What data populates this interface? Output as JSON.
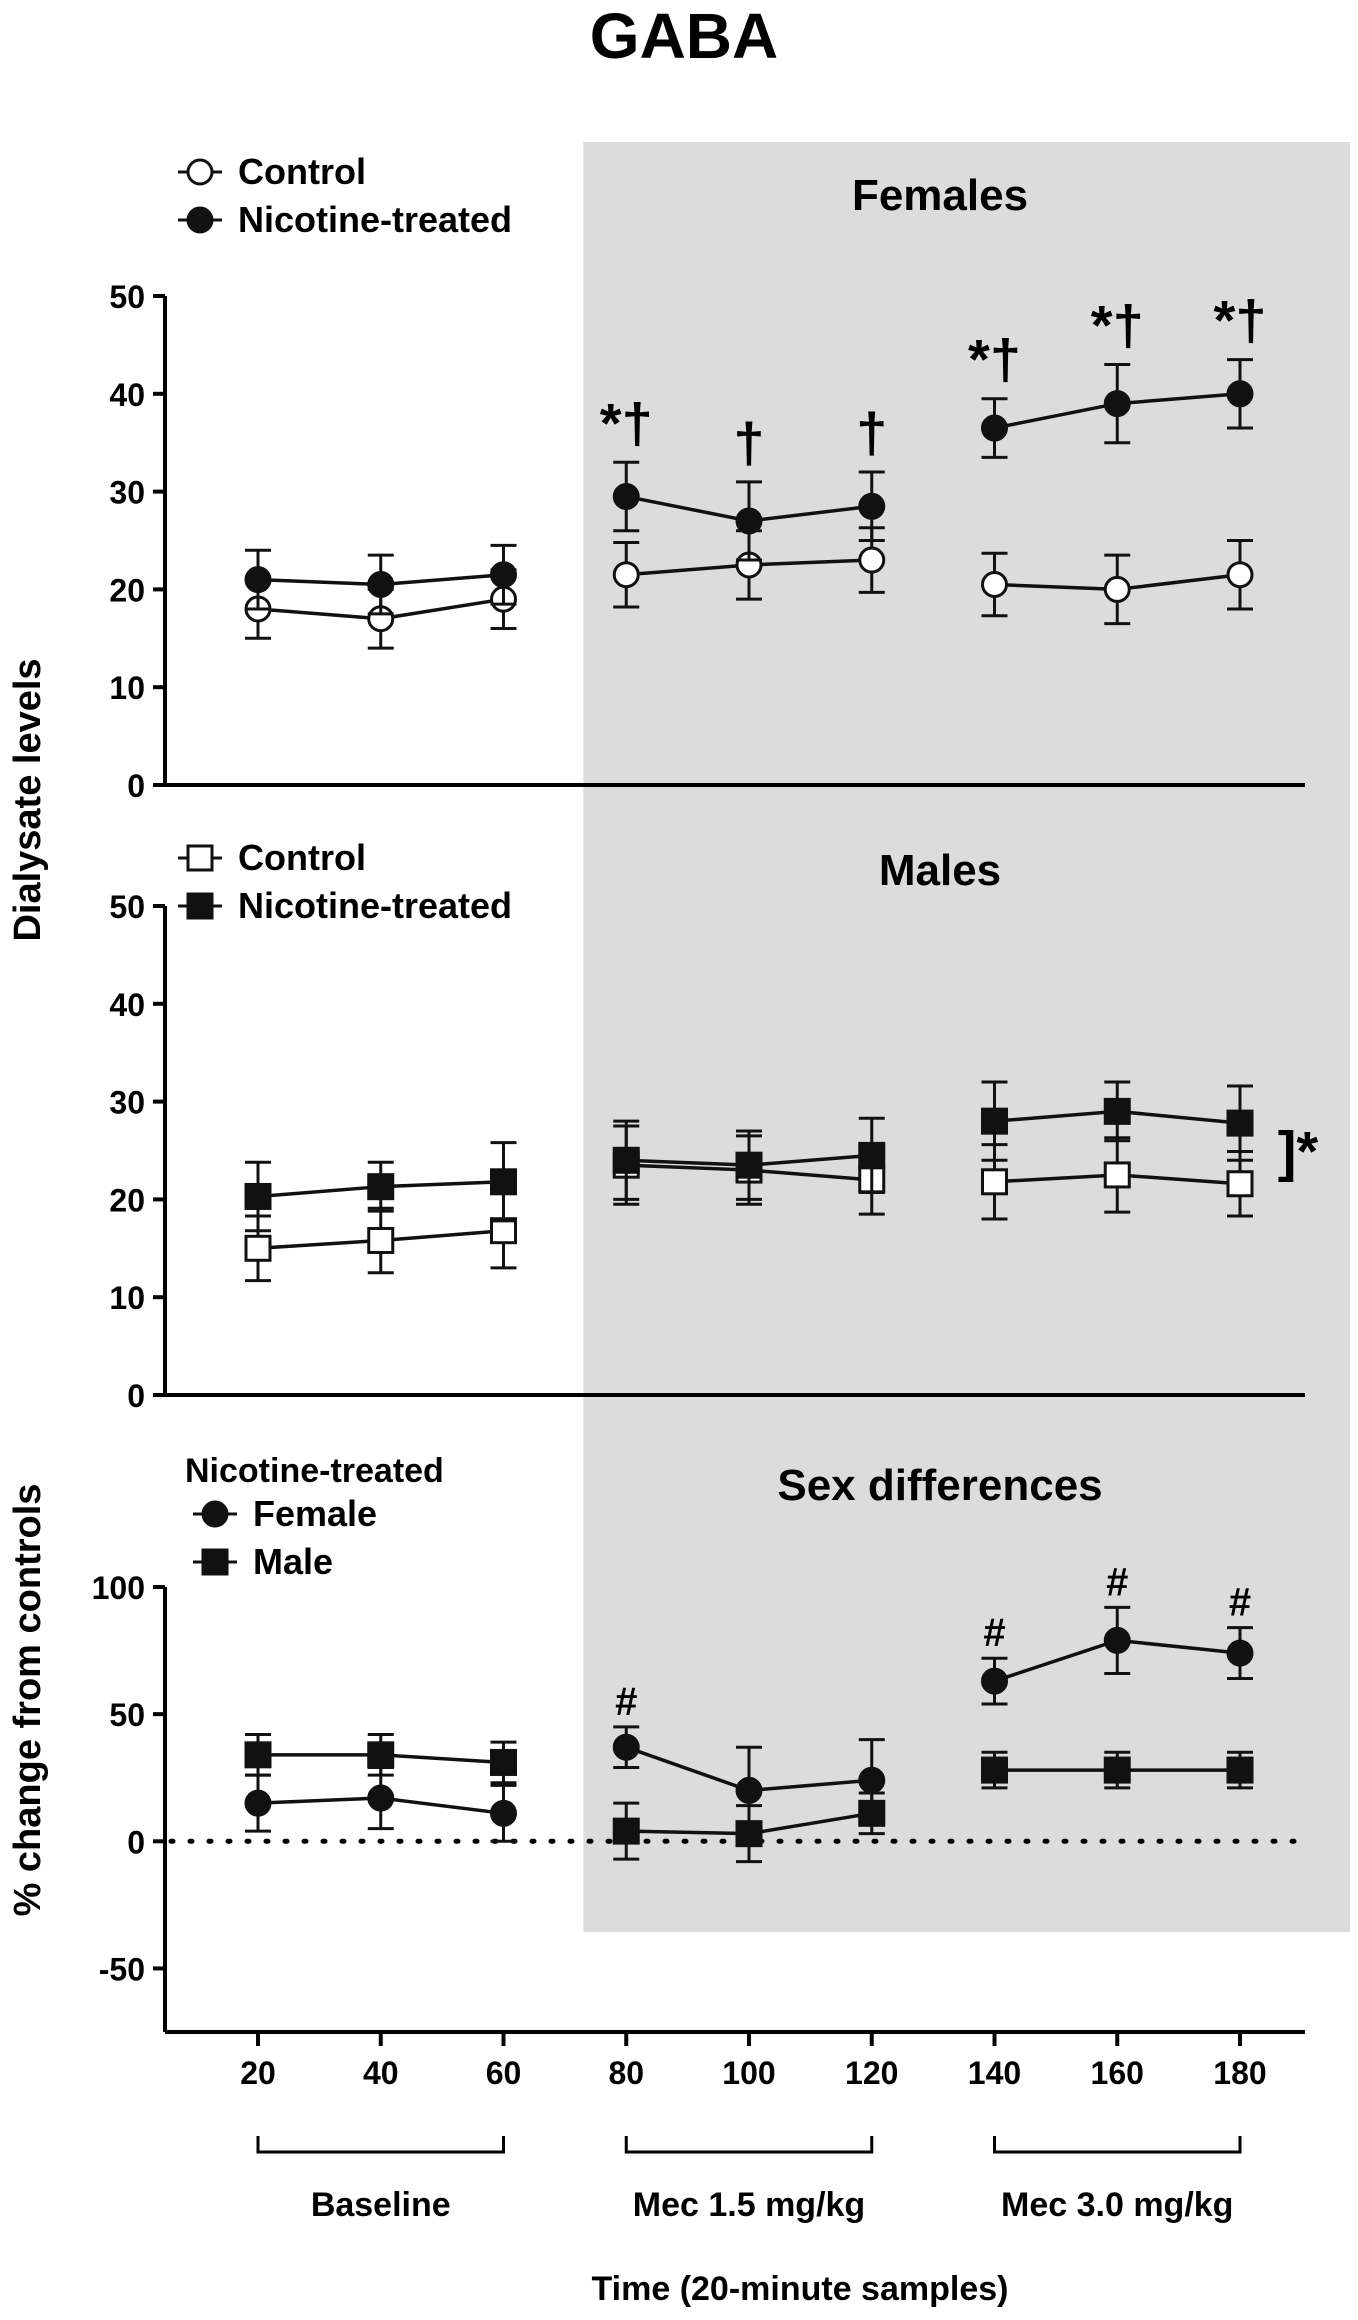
{
  "title": "GABA",
  "ylabel_top": "Dialysate levels",
  "ylabel_bottom": "% change from controls",
  "xlabel": "Time (20-minute samples)",
  "x_ticks": [
    "20",
    "40",
    "60",
    "80",
    "100",
    "120",
    "140",
    "160",
    "180"
  ],
  "phases": [
    {
      "label": "Baseline",
      "from": 20,
      "to": 60
    },
    {
      "label": "Mec 1.5 mg/kg",
      "from": 80,
      "to": 120
    },
    {
      "label": "Mec 3.0 mg/kg",
      "from": 140,
      "to": 180
    }
  ],
  "shade_region": {
    "from": 73,
    "color": "#dcdcdc"
  },
  "chart_data": [
    {
      "type": "line",
      "title": "Females",
      "ylim": [
        0,
        50
      ],
      "yticks": [
        "0",
        "10",
        "20",
        "30",
        "40",
        "50"
      ],
      "legend": {
        "placement": "top-left"
      },
      "series": [
        {
          "name": "Control",
          "marker": "open-circle",
          "groups": [
            {
              "x": [
                20,
                40,
                60
              ],
              "y": [
                18,
                17,
                19
              ],
              "err": [
                3,
                3,
                3
              ]
            },
            {
              "x": [
                80,
                100,
                120
              ],
              "y": [
                21.5,
                22.5,
                23
              ],
              "err": [
                3.3,
                3.5,
                3.3
              ]
            },
            {
              "x": [
                140,
                160,
                180
              ],
              "y": [
                20.5,
                20,
                21.5
              ],
              "err": [
                3.2,
                3.5,
                3.5
              ]
            }
          ]
        },
        {
          "name": "Nicotine-treated",
          "marker": "filled-circle",
          "groups": [
            {
              "x": [
                20,
                40,
                60
              ],
              "y": [
                21,
                20.5,
                21.5
              ],
              "err": [
                3,
                3,
                3
              ]
            },
            {
              "x": [
                80,
                100,
                120
              ],
              "y": [
                29.5,
                27,
                28.5
              ],
              "err": [
                3.5,
                4,
                3.5
              ]
            },
            {
              "x": [
                140,
                160,
                180
              ],
              "y": [
                36.5,
                39,
                40
              ],
              "err": [
                3,
                4,
                3.5
              ]
            }
          ]
        }
      ],
      "annotations": [
        {
          "x": 80,
          "text": "*†"
        },
        {
          "x": 100,
          "text": "†"
        },
        {
          "x": 120,
          "text": "†"
        },
        {
          "x": 140,
          "text": "*†"
        },
        {
          "x": 160,
          "text": "*†"
        },
        {
          "x": 180,
          "text": "*†"
        }
      ]
    },
    {
      "type": "line",
      "title": "Males",
      "ylim": [
        0,
        50
      ],
      "yticks": [
        "0",
        "10",
        "20",
        "30",
        "40",
        "50"
      ],
      "legend": {
        "placement": "top-left"
      },
      "series": [
        {
          "name": "Control",
          "marker": "open-square",
          "groups": [
            {
              "x": [
                20,
                40,
                60
              ],
              "y": [
                15,
                15.8,
                16.8
              ],
              "err": [
                3.3,
                3.3,
                3.8
              ]
            },
            {
              "x": [
                80,
                100,
                120
              ],
              "y": [
                23.5,
                23,
                22
              ],
              "err": [
                4,
                3.5,
                3.5
              ]
            },
            {
              "x": [
                140,
                160,
                180
              ],
              "y": [
                21.8,
                22.5,
                21.6
              ],
              "err": [
                3.8,
                3.8,
                3.3
              ]
            }
          ]
        },
        {
          "name": "Nicotine-treated",
          "marker": "filled-square",
          "groups": [
            {
              "x": [
                20,
                40,
                60
              ],
              "y": [
                20.3,
                21.3,
                21.8
              ],
              "err": [
                3.5,
                2.5,
                4
              ]
            },
            {
              "x": [
                80,
                100,
                120
              ],
              "y": [
                24,
                23.5,
                24.5
              ],
              "err": [
                4,
                3.5,
                3.8
              ]
            },
            {
              "x": [
                140,
                160,
                180
              ],
              "y": [
                28,
                29,
                27.8
              ],
              "err": [
                4,
                3,
                3.8
              ]
            }
          ]
        }
      ],
      "annotations": [
        {
          "x": 180,
          "text": "]*"
        }
      ]
    },
    {
      "type": "line",
      "title": "Sex differences",
      "ylim": [
        -75,
        100
      ],
      "yticks": [
        "-50",
        "0",
        "50",
        "100"
      ],
      "legend": {
        "title": "Nicotine-treated",
        "placement": "top-left"
      },
      "reference_line": {
        "y": 0,
        "style": "dotted"
      },
      "series": [
        {
          "name": "Female",
          "marker": "filled-circle",
          "groups": [
            {
              "x": [
                20,
                40,
                60
              ],
              "y": [
                15,
                17,
                11
              ],
              "err": [
                11,
                12,
                11
              ]
            },
            {
              "x": [
                80,
                100,
                120
              ],
              "y": [
                37,
                20,
                24
              ],
              "err": [
                8,
                17,
                16
              ]
            },
            {
              "x": [
                140,
                160,
                180
              ],
              "y": [
                63,
                79,
                74
              ],
              "err": [
                9,
                13,
                10
              ]
            }
          ]
        },
        {
          "name": "Male",
          "marker": "filled-square",
          "groups": [
            {
              "x": [
                20,
                40,
                60
              ],
              "y": [
                34,
                34,
                31
              ],
              "err": [
                8,
                8,
                8
              ]
            },
            {
              "x": [
                80,
                100,
                120
              ],
              "y": [
                4,
                3,
                11
              ],
              "err": [
                11,
                11,
                8
              ]
            },
            {
              "x": [
                140,
                160,
                180
              ],
              "y": [
                28,
                28,
                28
              ],
              "err": [
                7,
                7,
                7
              ]
            }
          ]
        }
      ],
      "annotations": [
        {
          "x": 80,
          "text": "#"
        },
        {
          "x": 140,
          "text": "#"
        },
        {
          "x": 160,
          "text": "#"
        },
        {
          "x": 180,
          "text": "#"
        }
      ]
    }
  ]
}
